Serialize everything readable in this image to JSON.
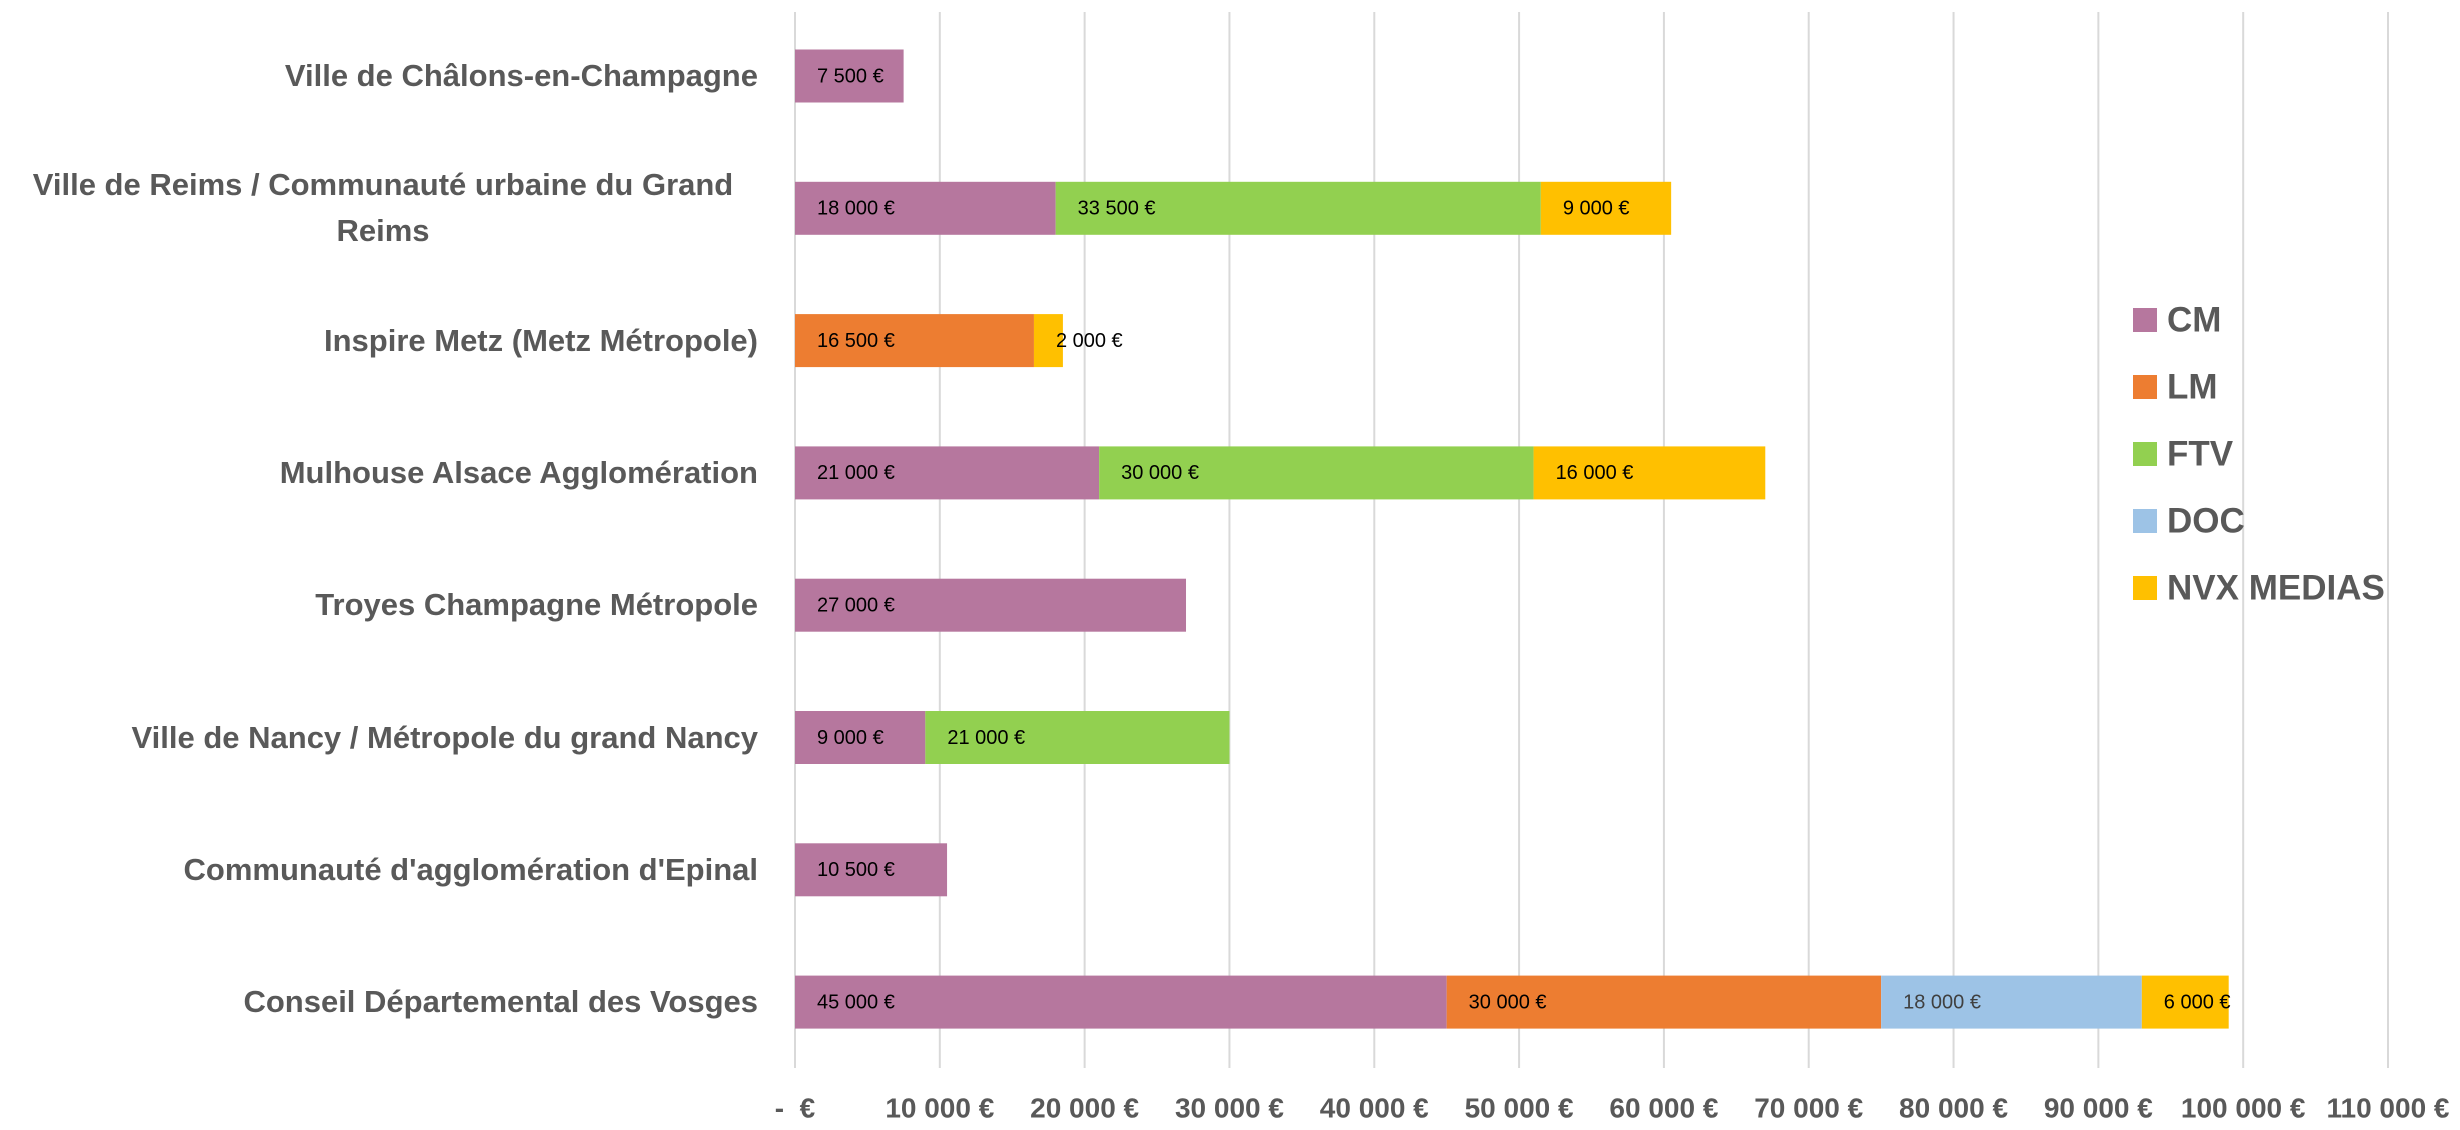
{
  "chart_data": {
    "type": "stacked_bar_horizontal",
    "categories": [
      "Ville de Châlons-en-Champagne",
      "Ville de Reims / Communauté urbaine du Grand Reims",
      "Inspire Metz (Metz Métropole)",
      "Mulhouse Alsace Agglomération",
      "Troyes Champagne Métropole",
      "Ville de Nancy / Métropole du grand Nancy",
      "Communauté d'agglomération d'Epinal",
      "Conseil Départemental des Vosges"
    ],
    "series": [
      {
        "name": "CM",
        "color": "#b6779e",
        "values": [
          7500,
          18000,
          null,
          21000,
          27000,
          9000,
          10500,
          45000
        ],
        "value_labels": [
          "7 500 €",
          "18 000 €",
          null,
          "21 000 €",
          "27 000 €",
          "9 000 €",
          "10 500 €",
          "45 000 €"
        ]
      },
      {
        "name": "LM",
        "color": "#ed7d31",
        "values": [
          null,
          null,
          16500,
          null,
          null,
          null,
          null,
          30000
        ],
        "value_labels": [
          null,
          null,
          "16 500 €",
          null,
          null,
          null,
          null,
          "30 000 €"
        ]
      },
      {
        "name": "FTV",
        "color": "#92d050",
        "values": [
          null,
          33500,
          null,
          30000,
          null,
          21000,
          null,
          null
        ],
        "value_labels": [
          null,
          "33 500 €",
          null,
          "30 000 €",
          null,
          "21 000 €",
          null,
          null
        ]
      },
      {
        "name": "DOC",
        "color": "#9dc3e6",
        "values": [
          null,
          null,
          null,
          null,
          null,
          null,
          null,
          18000
        ],
        "value_labels": [
          null,
          null,
          null,
          null,
          null,
          null,
          null,
          "18 000 €"
        ]
      },
      {
        "name": "NVX MEDIAS",
        "color": "#ffc000",
        "values": [
          null,
          9000,
          2000,
          16000,
          null,
          null,
          null,
          6000
        ],
        "value_labels": [
          null,
          "9 000 €",
          "2 000 €",
          "16 000 €",
          null,
          null,
          null,
          "6 000 €"
        ]
      }
    ],
    "xlim": [
      0,
      110000
    ],
    "xticks": [
      {
        "value": 0,
        "label": "-  €"
      },
      {
        "value": 10000,
        "label": "10 000 €"
      },
      {
        "value": 20000,
        "label": "20 000 €"
      },
      {
        "value": 30000,
        "label": "30 000 €"
      },
      {
        "value": 40000,
        "label": "40 000 €"
      },
      {
        "value": 50000,
        "label": "50 000 €"
      },
      {
        "value": 60000,
        "label": "60 000 €"
      },
      {
        "value": 70000,
        "label": "70 000 €"
      },
      {
        "value": 80000,
        "label": "80 000 €"
      },
      {
        "value": 90000,
        "label": "90 000 €"
      },
      {
        "value": 100000,
        "label": "100 000 €"
      },
      {
        "value": 110000,
        "label": "110 000 €"
      }
    ],
    "grid": true,
    "legend": "right"
  }
}
